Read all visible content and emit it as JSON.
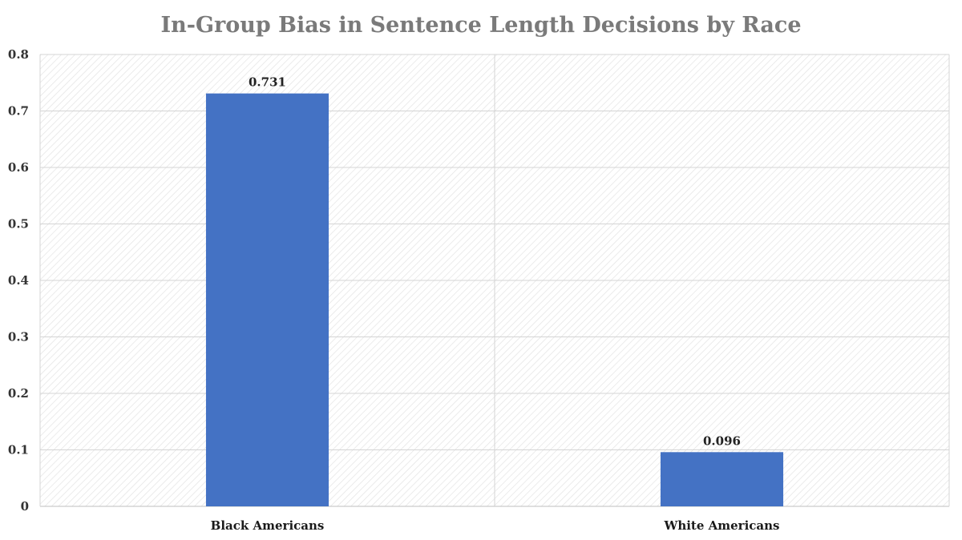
{
  "chart_data": {
    "type": "bar",
    "title": "In-Group Bias in Sentence Length Decisions by Race",
    "xlabel": "",
    "ylabel": "",
    "categories": [
      "Black Americans",
      "White Americans"
    ],
    "series": [
      {
        "values": [
          0.731,
          0.096
        ],
        "color": "#4472c4"
      }
    ],
    "data_labels": [
      "0.731",
      "0.096"
    ],
    "ylim": [
      0,
      0.8
    ],
    "yticks": [
      0,
      0.1,
      0.2,
      0.3,
      0.4,
      0.5,
      0.6,
      0.7,
      0.8
    ],
    "ytick_labels": [
      "0",
      "0.1",
      "0.2",
      "0.3",
      "0.4",
      "0.5",
      "0.6",
      "0.7",
      "0.8"
    ],
    "grid": true,
    "legend": "none"
  }
}
